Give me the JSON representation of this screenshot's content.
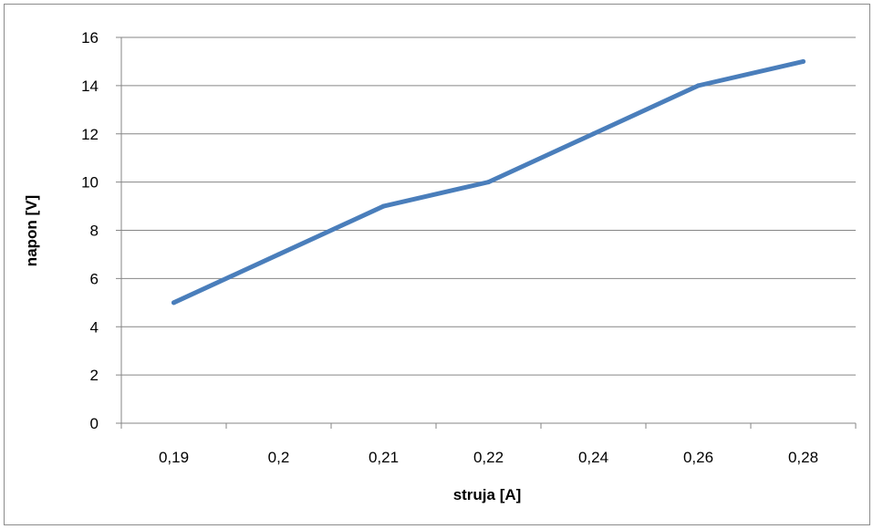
{
  "chart_data": {
    "type": "line",
    "categories": [
      "0,19",
      "0,2",
      "0,21",
      "0,22",
      "0,24",
      "0,26",
      "0,28"
    ],
    "series": [
      {
        "values": [
          5,
          7,
          9,
          10,
          12,
          14,
          15
        ]
      }
    ],
    "xlabel": "struja [A]",
    "ylabel": "napon [V]",
    "ylim": [
      0,
      16
    ],
    "yticks": [
      "0",
      "2",
      "4",
      "6",
      "8",
      "10",
      "12",
      "14",
      "16"
    ],
    "grid": "horizontal",
    "legend": "none",
    "colors": {
      "line": "#4a7ebb",
      "grid": "#868686",
      "axis": "#868686"
    }
  }
}
